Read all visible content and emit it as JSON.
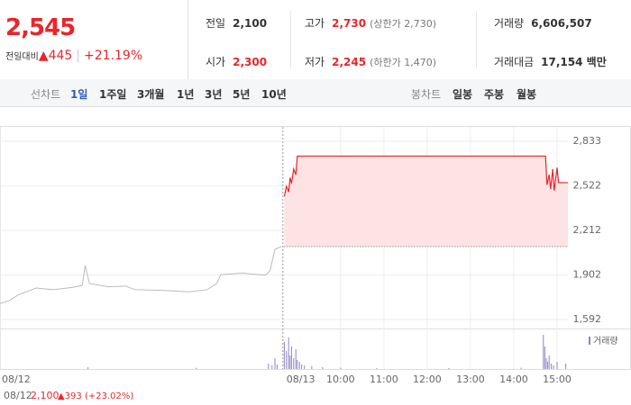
{
  "header": {
    "price": "2,545",
    "change_label": "전일대비",
    "change": "▲445",
    "rate": "+21.19%"
  },
  "info": [
    [
      {
        "label": "전일",
        "value": "2,100"
      },
      {
        "label": "고가",
        "value": "2,730",
        "note": "(상한가 2,730)"
      },
      {
        "label": "거래량",
        "value": "6,606,507"
      }
    ],
    [
      {
        "label": "시가",
        "value": "2,300"
      },
      {
        "label": "저가",
        "value": "2,245",
        "note": "(하한가 1,470)"
      },
      {
        "label": "거래대금",
        "value": "17,154 백만"
      }
    ]
  ],
  "tabs": {
    "line_label": "선차트",
    "line": [
      "1일",
      "1주일",
      "3개월",
      "1년",
      "3년",
      "5년",
      "10년"
    ],
    "candle_label": "봉차트",
    "candle": [
      "일봉",
      "주봉",
      "월봉"
    ]
  },
  "chart_data": {
    "type": "line",
    "color": "#e8262a",
    "baseline": 2100,
    "x": [
      -22,
      -10,
      2,
      28,
      52,
      78,
      92,
      96,
      102,
      128,
      152,
      165,
      202,
      240,
      265,
      278,
      284,
      315,
      346,
      352,
      359,
      368,
      372,
      375,
      378,
      380,
      382,
      385,
      388,
      390,
      734,
      736,
      739,
      741,
      744,
      746,
      750,
      752,
      765
    ],
    "values": [
      1704,
      1720,
      1760,
      1811,
      1800,
      1815,
      1830,
      1968,
      1842,
      1820,
      1825,
      1800,
      1795,
      1785,
      1800,
      1840,
      1905,
      1915,
      1900,
      1930,
      2080,
      2100,
      2450,
      2520,
      2480,
      2580,
      2540,
      2640,
      2600,
      2730,
      2730,
      2530,
      2600,
      2500,
      2640,
      2490,
      2650,
      2545,
      2545
    ],
    "xlim": [
      -22,
      765
    ],
    "ylim": [
      1592,
      2833
    ],
    "yticks": [
      {
        "value": 1592,
        "label": "1,592"
      },
      {
        "value": 1902,
        "label": "1,902"
      },
      {
        "value": 2212,
        "label": "2,212"
      },
      {
        "value": 2522,
        "label": "2,522"
      },
      {
        "value": 2833,
        "label": "2,833"
      }
    ],
    "xticks": [
      {
        "value": -22,
        "label": "08/12"
      },
      {
        "value": 370,
        "label": "08/13"
      },
      {
        "value": 450,
        "label": "10:00"
      },
      {
        "value": 510,
        "label": "11:00"
      },
      {
        "value": 570,
        "label": "12:00"
      },
      {
        "value": 630,
        "label": "13:00"
      },
      {
        "value": 690,
        "label": "14:00"
      },
      {
        "value": 750,
        "label": "15:00"
      }
    ],
    "volume": {
      "name": "거래량",
      "color": "#8f84c6",
      "x": [
        100,
        250,
        350,
        355,
        359,
        362,
        372,
        375,
        378,
        380,
        382,
        385,
        388,
        390,
        393,
        396,
        400,
        410,
        425,
        450,
        500,
        600,
        700,
        731,
        733,
        735,
        737,
        739,
        742,
        745,
        750,
        762
      ],
      "values": [
        20000,
        15000,
        60000,
        40000,
        120000,
        50000,
        300000,
        200000,
        350000,
        150000,
        250000,
        120000,
        220000,
        100000,
        80000,
        50000,
        40000,
        30000,
        20000,
        15000,
        10000,
        10000,
        15000,
        380000,
        250000,
        120000,
        80000,
        150000,
        60000,
        40000,
        80000,
        60000
      ],
      "ylim": [
        0,
        400000
      ]
    },
    "footnote": {
      "date": "08/12",
      "price": "2,100",
      "change": "▲393 (+23.02%)"
    }
  }
}
